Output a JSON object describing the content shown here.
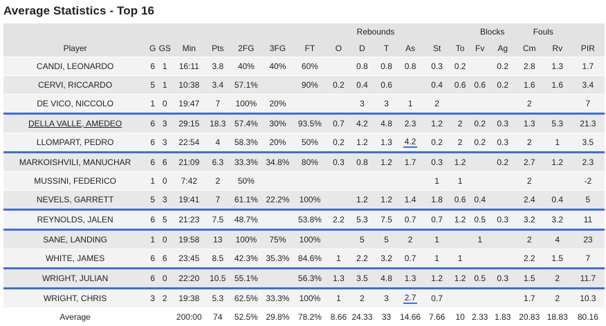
{
  "title": "Average Statistics - Top 16",
  "groups": {
    "rebounds": "Rebounds",
    "blocks": "Blocks",
    "fouls": "Fouls"
  },
  "columns": [
    "Player",
    "G",
    "GS",
    "Min",
    "Pts",
    "2FG",
    "3FG",
    "FT",
    "O",
    "D",
    "T",
    "As",
    "St",
    "To",
    "Fv",
    "Ag",
    "Cm",
    "Rv",
    "PIR"
  ],
  "rows": [
    [
      "CANDI, LEONARDO",
      "6",
      "1",
      "16:11",
      "3.8",
      "40%",
      "40%",
      "60%",
      "",
      "0.8",
      "0.8",
      "0.8",
      "0.3",
      "0.2",
      "",
      "0.2",
      "2.8",
      "1.3",
      "1.7"
    ],
    [
      "CERVI, RICCARDO",
      "5",
      "1",
      "10:38",
      "3.4",
      "57.1%",
      "",
      "90%",
      "0.2",
      "0.4",
      "0.6",
      "",
      "0.4",
      "0.6",
      "0.6",
      "0.2",
      "1.6",
      "1.6",
      "3.4"
    ],
    [
      "DE VICO, NICCOLO",
      "1",
      "0",
      "19:47",
      "7",
      "100%",
      "20%",
      "",
      "",
      "3",
      "3",
      "1",
      "2",
      "",
      "",
      "",
      "2",
      "",
      "7"
    ],
    [
      "DELLA VALLE, AMEDEO",
      "6",
      "3",
      "29:15",
      "18.3",
      "57.4%",
      "30%",
      "93.5%",
      "0.7",
      "4.2",
      "4.8",
      "2.3",
      "1.2",
      "2",
      "0.2",
      "0.3",
      "1.3",
      "5.3",
      "21.3"
    ],
    [
      "LLOMPART, PEDRO",
      "6",
      "3",
      "22:54",
      "4",
      "58.3%",
      "20%",
      "50%",
      "0.2",
      "1.2",
      "1.3",
      "4.2",
      "0.2",
      "2",
      "0.2",
      "0.3",
      "2",
      "1",
      "3.5"
    ],
    [
      "MARKOISHVILI, MANUCHAR",
      "6",
      "6",
      "21:09",
      "6.3",
      "33.3%",
      "34.8%",
      "80%",
      "0.3",
      "0.8",
      "1.2",
      "1.7",
      "0.3",
      "1.2",
      "",
      "0.2",
      "2.7",
      "1.2",
      "2.3"
    ],
    [
      "MUSSINI, FEDERICO",
      "1",
      "0",
      "7:42",
      "2",
      "50%",
      "",
      "",
      "",
      "",
      "",
      "",
      "1",
      "1",
      "",
      "",
      "2",
      "",
      "-2"
    ],
    [
      "NEVELS, GARRETT",
      "5",
      "3",
      "19:41",
      "7",
      "61.1%",
      "22.2%",
      "100%",
      "",
      "1.2",
      "1.2",
      "1.4",
      "1.8",
      "0.6",
      "0.4",
      "",
      "2.4",
      "0.4",
      "5"
    ],
    [
      "REYNOLDS, JALEN",
      "6",
      "5",
      "21:23",
      "7.5",
      "48.7%",
      "",
      "53.8%",
      "2.2",
      "5.3",
      "7.5",
      "0.7",
      "0.7",
      "1.2",
      "0.5",
      "0.3",
      "3.2",
      "3.2",
      "11"
    ],
    [
      "SANE, LANDING",
      "1",
      "0",
      "19:58",
      "13",
      "100%",
      "75%",
      "100%",
      "",
      "5",
      "5",
      "2",
      "1",
      "",
      "1",
      "",
      "2",
      "4",
      "23"
    ],
    [
      "WHITE, JAMES",
      "6",
      "6",
      "23:45",
      "8.5",
      "42.3%",
      "35.3%",
      "84.6%",
      "1",
      "2.2",
      "3.2",
      "0.7",
      "1",
      "1",
      "",
      "",
      "2.2",
      "1.5",
      "7"
    ],
    [
      "WRIGHT, JULIAN",
      "6",
      "0",
      "22:20",
      "10.5",
      "55.1%",
      "",
      "56.3%",
      "1.3",
      "3.5",
      "4.8",
      "1.3",
      "1.2",
      "1.2",
      "0.5",
      "0.3",
      "1.5",
      "2",
      "11.7"
    ],
    [
      "WRIGHT, CHRIS",
      "3",
      "2",
      "19:38",
      "5.3",
      "62.5%",
      "33.3%",
      "100%",
      "1",
      "2",
      "3",
      "2.7",
      "0.7",
      "",
      "",
      "",
      "1.7",
      "2",
      "10.3"
    ]
  ],
  "average": [
    "Average",
    "",
    "",
    "200:00",
    "74",
    "52.5%",
    "29.8%",
    "78.2%",
    "8.66",
    "24.33",
    "33",
    "14.66",
    "7.66",
    "10",
    "2.33",
    "1.83",
    "20.83",
    "18.83",
    "80.16"
  ]
}
